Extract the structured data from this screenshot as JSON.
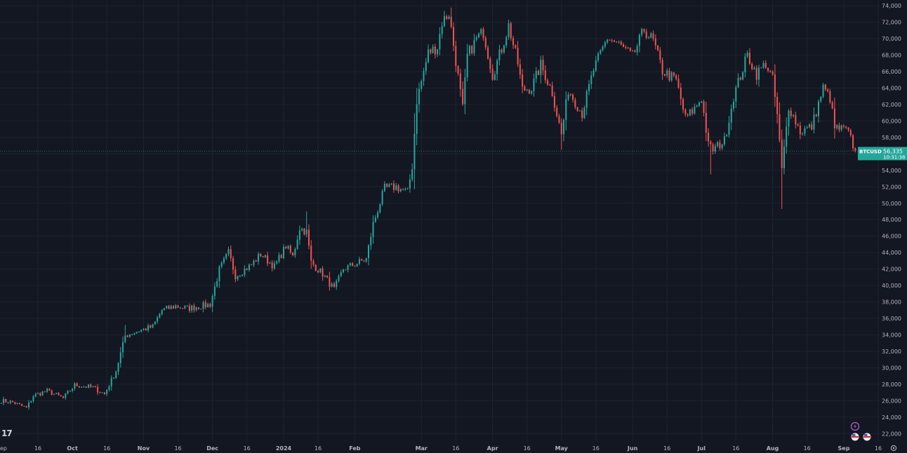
{
  "chart_data": {
    "type": "candlestick",
    "symbol": "BTCUSD",
    "last_price": "56,335",
    "countdown": "10:31:38",
    "y_ticks": [
      "74,000",
      "72,000",
      "70,000",
      "68,000",
      "66,000",
      "64,000",
      "62,000",
      "60,000",
      "58,000",
      "56,000",
      "54,000",
      "52,000",
      "50,000",
      "48,000",
      "46,000",
      "44,000",
      "42,000",
      "40,000",
      "38,000",
      "36,000",
      "34,000",
      "32,000",
      "30,000",
      "28,000",
      "26,000",
      "24,000",
      "22,000"
    ],
    "ylim": [
      21000,
      74700
    ],
    "x_ticks": [
      {
        "label": "ep",
        "date": "2023-09-01"
      },
      {
        "label": "16",
        "date": "2023-09-16"
      },
      {
        "label": "Oct",
        "date": "2023-10-01"
      },
      {
        "label": "16",
        "date": "2023-10-16"
      },
      {
        "label": "Nov",
        "date": "2023-11-01"
      },
      {
        "label": "16",
        "date": "2023-11-16"
      },
      {
        "label": "Dec",
        "date": "2023-12-01"
      },
      {
        "label": "16",
        "date": "2023-12-16"
      },
      {
        "label": "2024",
        "date": "2024-01-01"
      },
      {
        "label": "16",
        "date": "2024-01-16"
      },
      {
        "label": "Feb",
        "date": "2024-02-01"
      },
      {
        "label": "Mar",
        "date": "2024-03-01"
      },
      {
        "label": "16",
        "date": "2024-03-16"
      },
      {
        "label": "Apr",
        "date": "2024-04-01"
      },
      {
        "label": "16",
        "date": "2024-04-16"
      },
      {
        "label": "May",
        "date": "2024-05-01"
      },
      {
        "label": "16",
        "date": "2024-05-16"
      },
      {
        "label": "Jun",
        "date": "2024-06-01"
      },
      {
        "label": "16",
        "date": "2024-06-16"
      },
      {
        "label": "Jul",
        "date": "2024-07-01"
      },
      {
        "label": "16",
        "date": "2024-07-16"
      },
      {
        "label": "Aug",
        "date": "2024-08-01"
      },
      {
        "label": "16",
        "date": "2024-08-16"
      },
      {
        "label": "Sep",
        "date": "2024-09-01"
      },
      {
        "label": "16",
        "date": "2024-09-16"
      }
    ],
    "close_path": [
      [
        "2023-08-31",
        26000
      ],
      [
        "2023-09-05",
        25800
      ],
      [
        "2023-09-11",
        25100
      ],
      [
        "2023-09-14",
        26600
      ],
      [
        "2023-09-20",
        27200
      ],
      [
        "2023-09-27",
        26300
      ],
      [
        "2023-10-02",
        27900
      ],
      [
        "2023-10-10",
        27600
      ],
      [
        "2023-10-15",
        26800
      ],
      [
        "2023-10-20",
        29600
      ],
      [
        "2023-10-24",
        33900
      ],
      [
        "2023-10-30",
        34500
      ],
      [
        "2023-11-05",
        35000
      ],
      [
        "2023-11-09",
        37000
      ],
      [
        "2023-11-15",
        37500
      ],
      [
        "2023-11-20",
        37200
      ],
      [
        "2023-11-30",
        37700
      ],
      [
        "2023-12-04",
        41900
      ],
      [
        "2023-12-08",
        44000
      ],
      [
        "2023-12-11",
        41200
      ],
      [
        "2023-12-18",
        42500
      ],
      [
        "2023-12-22",
        43800
      ],
      [
        "2023-12-28",
        42300
      ],
      [
        "2024-01-02",
        44800
      ],
      [
        "2024-01-05",
        43500
      ],
      [
        "2024-01-08",
        47000
      ],
      [
        "2024-01-11",
        46500
      ],
      [
        "2024-01-13",
        42800
      ],
      [
        "2024-01-18",
        41400
      ],
      [
        "2024-01-23",
        39500
      ],
      [
        "2024-01-27",
        42000
      ],
      [
        "2024-02-01",
        42600
      ],
      [
        "2024-02-06",
        43200
      ],
      [
        "2024-02-09",
        47500
      ],
      [
        "2024-02-14",
        51800
      ],
      [
        "2024-02-19",
        52000
      ],
      [
        "2024-02-24",
        51300
      ],
      [
        "2024-02-26",
        54500
      ],
      [
        "2024-02-28",
        62500
      ],
      [
        "2024-03-04",
        68300
      ],
      [
        "2024-03-08",
        69000
      ],
      [
        "2024-03-10",
        72000
      ],
      [
        "2024-03-13",
        73100
      ],
      [
        "2024-03-19",
        61500
      ],
      [
        "2024-03-21",
        67900
      ],
      [
        "2024-03-25",
        70000
      ],
      [
        "2024-03-28",
        70800
      ],
      [
        "2024-04-01",
        65600
      ],
      [
        "2024-04-05",
        68800
      ],
      [
        "2024-04-08",
        71600
      ],
      [
        "2024-04-12",
        67000
      ],
      [
        "2024-04-14",
        63800
      ],
      [
        "2024-04-18",
        64000
      ],
      [
        "2024-04-22",
        66800
      ],
      [
        "2024-04-27",
        63500
      ],
      [
        "2024-05-01",
        58300
      ],
      [
        "2024-05-04",
        63800
      ],
      [
        "2024-05-10",
        60900
      ],
      [
        "2024-05-15",
        66200
      ],
      [
        "2024-05-21",
        70100
      ],
      [
        "2024-05-26",
        69300
      ],
      [
        "2024-06-01",
        67800
      ],
      [
        "2024-06-06",
        71100
      ],
      [
        "2024-06-10",
        69700
      ],
      [
        "2024-06-14",
        66100
      ],
      [
        "2024-06-20",
        64900
      ],
      [
        "2024-06-24",
        60300
      ],
      [
        "2024-06-28",
        61500
      ],
      [
        "2024-07-01",
        62800
      ],
      [
        "2024-07-04",
        57000
      ],
      [
        "2024-07-06",
        56500
      ],
      [
        "2024-07-11",
        57600
      ],
      [
        "2024-07-15",
        63000
      ],
      [
        "2024-07-21",
        68000
      ],
      [
        "2024-07-25",
        65700
      ],
      [
        "2024-07-29",
        67000
      ],
      [
        "2024-08-01",
        65000
      ],
      [
        "2024-08-03",
        60700
      ],
      [
        "2024-08-05",
        54000
      ],
      [
        "2024-08-08",
        61800
      ],
      [
        "2024-08-13",
        58700
      ],
      [
        "2024-08-18",
        59300
      ],
      [
        "2024-08-23",
        64000
      ],
      [
        "2024-08-26",
        62800
      ],
      [
        "2024-08-28",
        59100
      ],
      [
        "2024-09-02",
        58900
      ],
      [
        "2024-09-04",
        57800
      ],
      [
        "2024-09-06",
        56335
      ]
    ],
    "wick_spikes": [
      [
        "2023-10-24",
        35200,
        "up"
      ],
      [
        "2024-01-11",
        49000,
        "up"
      ],
      [
        "2024-02-28",
        64000,
        "up"
      ],
      [
        "2024-03-14",
        73800,
        "up"
      ],
      [
        "2024-05-01",
        56500,
        "down"
      ],
      [
        "2024-07-05",
        53500,
        "down"
      ],
      [
        "2024-08-05",
        49300,
        "down"
      ]
    ],
    "colors": {
      "bullish": "#26a69a",
      "bearish": "#ef5350",
      "background": "#131722",
      "grid": "#1f2330",
      "price_tag": "#26a69a",
      "text": "#b2b5be",
      "logo": "#d1d4dc"
    },
    "logo_text": "17",
    "icons": [
      "lightning-icon",
      "flag-icon",
      "flag-icon",
      "settings-icon"
    ]
  }
}
